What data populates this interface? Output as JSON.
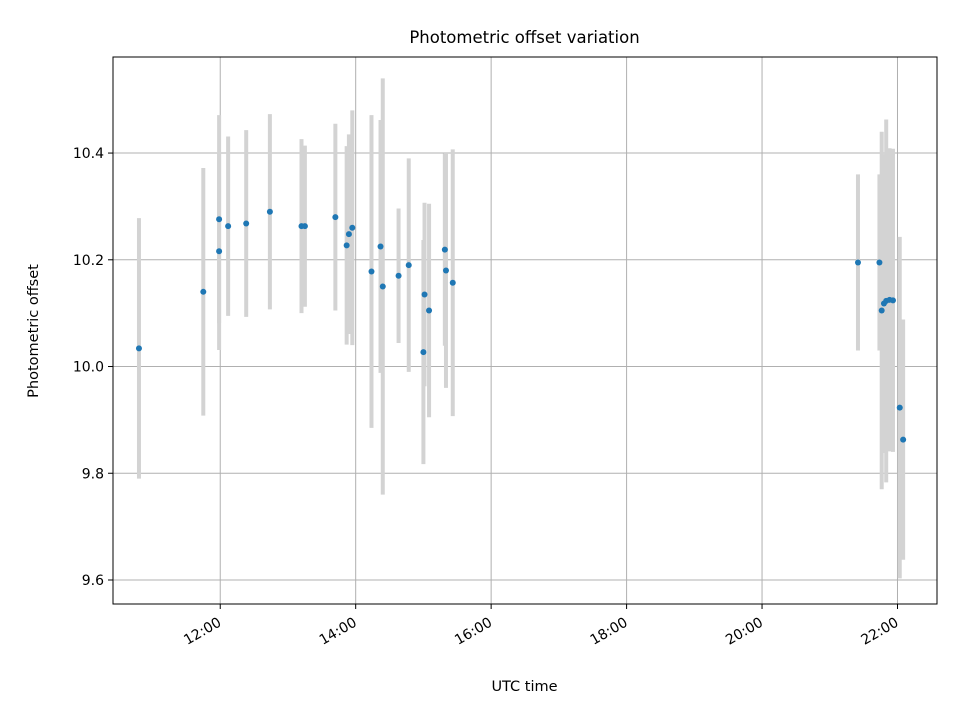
{
  "chart_data": {
    "type": "scatter",
    "title": "Photometric offset variation",
    "xlabel": "UTC time",
    "ylabel": "Photometric offset",
    "xlim": [
      "10:25",
      "22:35"
    ],
    "ylim": [
      9.555,
      10.58
    ],
    "grid": true,
    "x_ticks": [
      "12:00",
      "14:00",
      "16:00",
      "18:00",
      "20:00",
      "22:00"
    ],
    "y_ticks": [
      9.6,
      9.8,
      10.0,
      10.2,
      10.4
    ],
    "y_tick_labels": [
      "9.6",
      "9.8",
      "10.0",
      "10.2",
      "10.4"
    ],
    "colors": {
      "point": "#1f77b4",
      "errorbar": "#d3d3d3",
      "grid": "#b0b0b0",
      "axes": "#000000"
    },
    "series": [
      {
        "points": [
          {
            "x": "10:48",
            "y": 10.034,
            "yerr": 0.244
          },
          {
            "x": "11:45",
            "y": 10.14,
            "yerr": 0.232
          },
          {
            "x": "11:59",
            "y": 10.216,
            "yerr": 0.185
          },
          {
            "x": "11:59",
            "y": 10.276,
            "yerr": 0.195
          },
          {
            "x": "12:07",
            "y": 10.263,
            "yerr": 0.168
          },
          {
            "x": "12:23",
            "y": 10.268,
            "yerr": 0.175
          },
          {
            "x": "12:44",
            "y": 10.29,
            "yerr": 0.183
          },
          {
            "x": "13:12",
            "y": 10.263,
            "yerr": 0.163
          },
          {
            "x": "13:15",
            "y": 10.263,
            "yerr": 0.151
          },
          {
            "x": "13:42",
            "y": 10.28,
            "yerr": 0.175
          },
          {
            "x": "13:52",
            "y": 10.227,
            "yerr": 0.186
          },
          {
            "x": "13:54",
            "y": 10.248,
            "yerr": 0.187
          },
          {
            "x": "13:57",
            "y": 10.26,
            "yerr": 0.22
          },
          {
            "x": "14:14",
            "y": 10.178,
            "yerr": 0.293
          },
          {
            "x": "14:22",
            "y": 10.225,
            "yerr": 0.237
          },
          {
            "x": "14:24",
            "y": 10.15,
            "yerr": 0.39
          },
          {
            "x": "14:38",
            "y": 10.17,
            "yerr": 0.126
          },
          {
            "x": "14:47",
            "y": 10.19,
            "yerr": 0.2
          },
          {
            "x": "15:00",
            "y": 10.027,
            "yerr": 0.21
          },
          {
            "x": "15:01",
            "y": 10.135,
            "yerr": 0.172
          },
          {
            "x": "15:05",
            "y": 10.105,
            "yerr": 0.2
          },
          {
            "x": "15:19",
            "y": 10.219,
            "yerr": 0.18
          },
          {
            "x": "15:20",
            "y": 10.18,
            "yerr": 0.22
          },
          {
            "x": "15:26",
            "y": 10.157,
            "yerr": 0.25
          },
          {
            "x": "21:25",
            "y": 10.195,
            "yerr": 0.165
          },
          {
            "x": "21:44",
            "y": 10.195,
            "yerr": 0.165
          },
          {
            "x": "21:46",
            "y": 10.105,
            "yerr": 0.335
          },
          {
            "x": "21:48",
            "y": 10.118,
            "yerr": 0.28
          },
          {
            "x": "21:50",
            "y": 10.123,
            "yerr": 0.34
          },
          {
            "x": "21:53",
            "y": 10.125,
            "yerr": 0.284
          },
          {
            "x": "21:56",
            "y": 10.124,
            "yerr": 0.284
          },
          {
            "x": "22:02",
            "y": 9.923,
            "yerr": 0.32
          },
          {
            "x": "22:05",
            "y": 9.863,
            "yerr": 0.225
          }
        ]
      }
    ]
  }
}
